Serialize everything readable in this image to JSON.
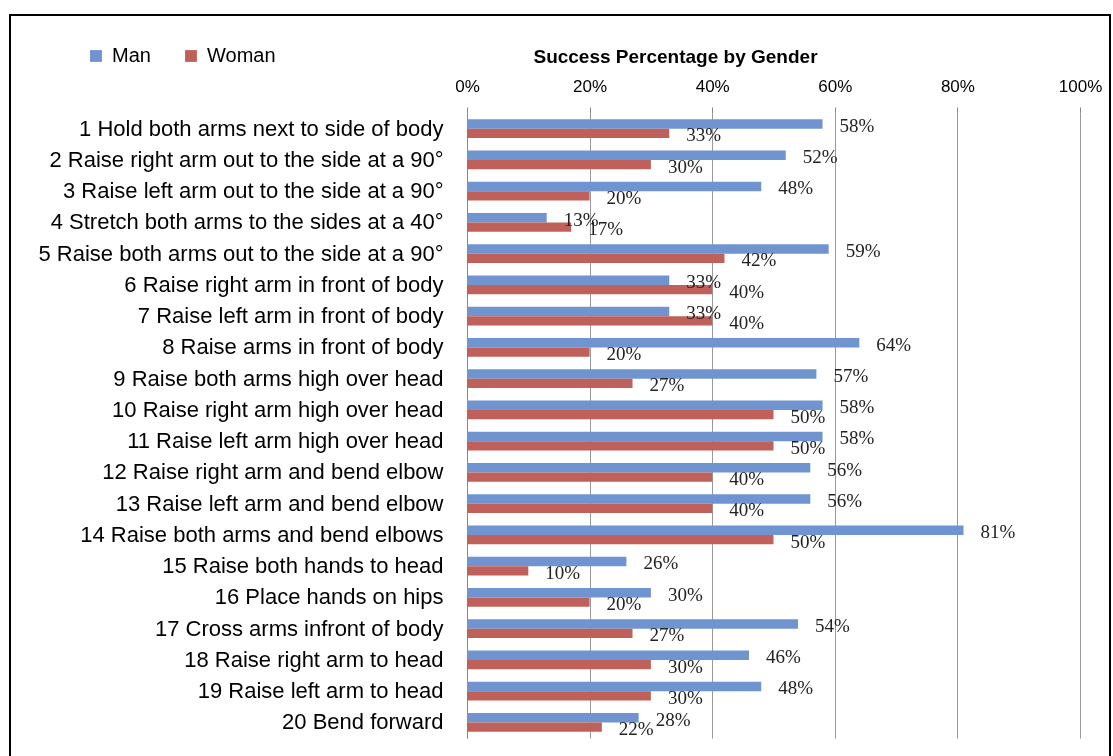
{
  "chart_data": {
    "type": "bar",
    "orientation": "horizontal",
    "title": "Success Percentage by Gender",
    "categories": [
      "1 Hold both arms next to side of body",
      "2 Raise right arm out to the side at a 90°",
      "3 Raise left arm out to the side at a 90°",
      "4 Stretch both arms to the sides at a 40°",
      "5 Raise both arms out to the side at a 90°",
      "6 Raise right arm in front of body",
      "7 Raise left arm in front of body",
      "8 Raise arms in front of body",
      "9 Raise both arms high over head",
      "10 Raise right arm high over head",
      "11 Raise left arm high over head",
      "12 Raise right arm and bend elbow",
      "13 Raise left arm and bend elbow",
      "14 Raise both arms and bend elbows",
      "15 Raise both hands to head",
      "16 Place hands on hips",
      "17 Cross arms infront of body",
      "18 Raise right arm to head",
      "19 Raise left arm to head",
      "20 Bend forward"
    ],
    "series": [
      {
        "name": "Man",
        "color": "#6f94cf",
        "values": [
          58,
          52,
          48,
          13,
          59,
          33,
          33,
          64,
          57,
          58,
          58,
          56,
          56,
          81,
          26,
          30,
          54,
          46,
          48,
          28
        ],
        "value_labels": [
          "58%",
          "52%",
          "48%",
          "13%",
          "59%",
          "33%",
          "33%",
          "64%",
          "57%",
          "58%",
          "58%",
          "56%",
          "56%",
          "81%",
          "26%",
          "30%",
          "54%",
          "46%",
          "48%",
          "28%"
        ]
      },
      {
        "name": "Woman",
        "color": "#c0605a",
        "values": [
          33,
          30,
          20,
          17,
          42,
          40,
          40,
          20,
          27,
          50,
          50,
          40,
          40,
          50,
          10,
          20,
          27,
          30,
          30,
          22
        ],
        "value_labels": [
          "33%",
          "30%",
          "20%",
          "17%",
          "42%",
          "40%",
          "40%",
          "20%",
          "27%",
          "50%",
          "50%",
          "40%",
          "40%",
          "50%",
          "10%",
          "20%",
          "27%",
          "30%",
          "30%",
          "22%"
        ]
      }
    ],
    "xlim": [
      0,
      100
    ],
    "xticks": [
      {
        "value": 0,
        "label": "0%"
      },
      {
        "value": 20,
        "label": "20%"
      },
      {
        "value": 40,
        "label": "40%"
      },
      {
        "value": 60,
        "label": "60%"
      },
      {
        "value": 80,
        "label": "80%"
      },
      {
        "value": 100,
        "label": "100%"
      }
    ],
    "grid": "x",
    "legend": "top left"
  }
}
